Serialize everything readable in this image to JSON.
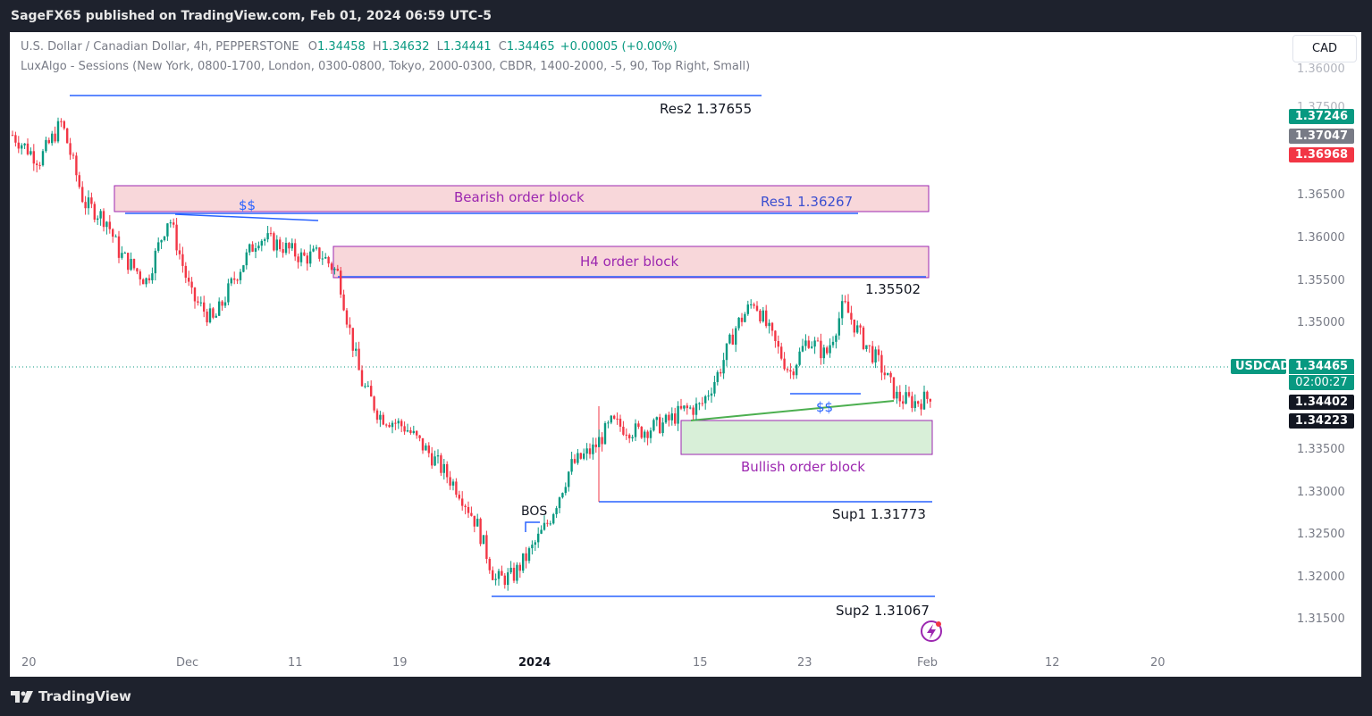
{
  "header": {
    "title": "SageFX65 published on TradingView.com, Feb 01, 2024 06:59 UTC-5"
  },
  "legend": {
    "symbol_desc": "U.S. Dollar / Canadian Dollar, 4h, PEPPERSTONE",
    "o_label": "O",
    "o_val": "1.34458",
    "h_label": "H",
    "h_val": "1.34632",
    "l_label": "L",
    "l_val": "1.34441",
    "c_label": "C",
    "c_val": "1.34465",
    "change": "+0.00005 (+0.00%)",
    "indicator": "LuxAlgo - Sessions (New York, 0800-1700, London, 0300-0800, Tokyo, 2000-0300, CBDR, 1400-2000, -5, 90, Top Right, Small)"
  },
  "currency_button": "CAD",
  "price_axis": [
    "1.36000",
    "1.37500",
    "1.36500",
    "1.36000",
    "1.35500",
    "1.35000",
    "1.33500",
    "1.33000",
    "1.32500",
    "1.32000",
    "1.31500"
  ],
  "time_axis": [
    "20",
    "Dec",
    "11",
    "19",
    "2024",
    "15",
    "23",
    "Feb",
    "12",
    "20"
  ],
  "tags": {
    "t1": "1.37246",
    "t2": "1.37047",
    "t3": "1.36968",
    "symbol": "USDCAD",
    "price": "1.34465",
    "countdown": "02:00:27",
    "t4": "1.34402",
    "t5": "1.34223"
  },
  "annotations": {
    "res2": "Res2  1.37655",
    "res1": "Res1 1.36267",
    "bearish_ob": "Bearish order block",
    "h4_ob": "H4 order block",
    "level_1": "1.35502",
    "liq_top": "$$",
    "liq_mid": "$$",
    "bullish_ob": "Bullish order block",
    "sup1": "Sup1 1.31773",
    "sup2": "Sup2 1.31067",
    "bos": "BOS"
  },
  "footer": {
    "brand": "TradingView"
  },
  "colors": {
    "up": "#089981",
    "down": "#f23645",
    "level_line": "#2962ff",
    "zone_fill": "#f8d7da",
    "zone_border": "#9c27b0",
    "bull_fill": "#d8efd8",
    "trend": "#4caf50",
    "frame_bg": "#1e222d"
  },
  "chart_data": {
    "type": "candlestick",
    "symbol": "USDCAD",
    "timeframe": "4h",
    "close_path_approx": [
      [
        0,
        1.372
      ],
      [
        30,
        1.369
      ],
      [
        55,
        1.3735
      ],
      [
        80,
        1.364
      ],
      [
        105,
        1.362
      ],
      [
        120,
        1.358
      ],
      [
        150,
        1.3548
      ],
      [
        175,
        1.3625
      ],
      [
        200,
        1.353
      ],
      [
        225,
        1.35
      ],
      [
        250,
        1.3555
      ],
      [
        275,
        1.36
      ],
      [
        300,
        1.359
      ],
      [
        325,
        1.3575
      ],
      [
        345,
        1.358
      ],
      [
        365,
        1.3555
      ],
      [
        375,
        1.35
      ],
      [
        390,
        1.343
      ],
      [
        410,
        1.339
      ],
      [
        440,
        1.3375
      ],
      [
        470,
        1.334
      ],
      [
        500,
        1.33
      ],
      [
        520,
        1.326
      ],
      [
        540,
        1.3195
      ],
      [
        560,
        1.32
      ],
      [
        580,
        1.323
      ],
      [
        600,
        1.3265
      ],
      [
        625,
        1.333
      ],
      [
        650,
        1.335
      ],
      [
        670,
        1.338
      ],
      [
        700,
        1.337
      ],
      [
        730,
        1.338
      ],
      [
        750,
        1.3395
      ],
      [
        770,
        1.34
      ],
      [
        790,
        1.344
      ],
      [
        810,
        1.3495
      ],
      [
        830,
        1.3525
      ],
      [
        850,
        1.348
      ],
      [
        870,
        1.344
      ],
      [
        890,
        1.348
      ],
      [
        910,
        1.346
      ],
      [
        930,
        1.352
      ],
      [
        950,
        1.348
      ],
      [
        970,
        1.345
      ],
      [
        990,
        1.341
      ],
      [
        1010,
        1.3405
      ],
      [
        1025,
        1.341
      ],
      [
        1040,
        1.3446
      ]
    ],
    "levels": {
      "res2": 1.37655,
      "res1": 1.36267,
      "ob_level": 1.35502,
      "sup1": 1.31773,
      "sup2": 1.31067,
      "last": 1.34465
    },
    "zones": {
      "bearish_order_block": [
        1.36267,
        1.366
      ],
      "h4_order_block": [
        1.35502,
        1.359
      ],
      "bullish_order_block": [
        1.3346,
        1.338
      ]
    }
  }
}
